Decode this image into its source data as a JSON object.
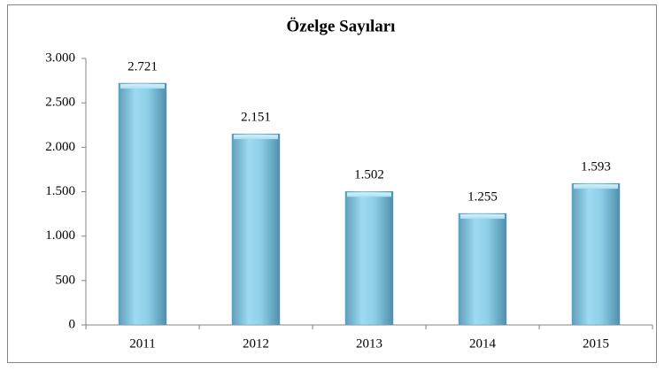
{
  "chart_data": {
    "type": "bar",
    "title": "Özelge Sayıları",
    "categories": [
      "2011",
      "2012",
      "2013",
      "2014",
      "2015"
    ],
    "values": [
      2721,
      2151,
      1502,
      1255,
      1593
    ],
    "value_labels": [
      "2.721",
      "2.151",
      "1.502",
      "1.255",
      "1.593"
    ],
    "color": "#8ccfe8",
    "ylim": [
      0,
      3000
    ],
    "yticks": [
      0,
      500,
      {
        "value": 1000,
        "label": "1.000"
      },
      {
        "value": 1500,
        "label": "1.500"
      },
      {
        "value": 2000,
        "label": "2.000"
      },
      {
        "value": 2500,
        "label": "2.500"
      },
      {
        "value": 3000,
        "label": "3.000"
      }
    ],
    "grid": false
  }
}
